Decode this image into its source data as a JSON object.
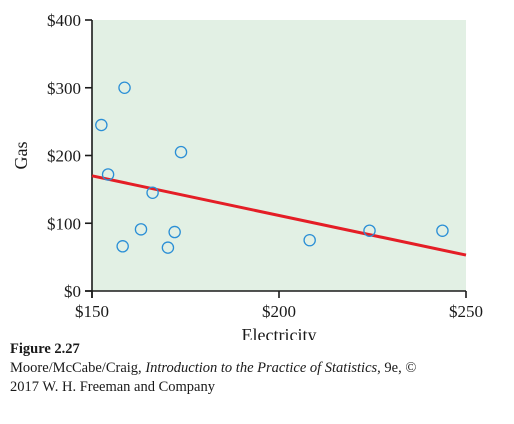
{
  "chart_data": {
    "type": "scatter",
    "xlabel": "Electricity",
    "ylabel": "Gas",
    "xlim": [
      150,
      250
    ],
    "ylim": [
      0,
      400
    ],
    "x_ticks": [
      150,
      200,
      250
    ],
    "y_ticks": [
      0,
      100,
      200,
      300,
      400
    ],
    "x_tick_labels": [
      "$150",
      "$200",
      "$250"
    ],
    "y_tick_labels": [
      "$0",
      "$100",
      "$200",
      "$300",
      "$400"
    ],
    "points": [
      {
        "x": 152.5,
        "y": 245
      },
      {
        "x": 154.3,
        "y": 172
      },
      {
        "x": 158.2,
        "y": 66
      },
      {
        "x": 158.7,
        "y": 300
      },
      {
        "x": 163.1,
        "y": 91
      },
      {
        "x": 166.2,
        "y": 145
      },
      {
        "x": 170.3,
        "y": 64
      },
      {
        "x": 172.1,
        "y": 87
      },
      {
        "x": 173.8,
        "y": 205
      },
      {
        "x": 208.2,
        "y": 75
      },
      {
        "x": 224.2,
        "y": 89
      },
      {
        "x": 243.7,
        "y": 89
      }
    ],
    "fit_line": {
      "x": [
        150,
        250
      ],
      "y": [
        170,
        53
      ]
    },
    "colors": {
      "plot_background": "#e2f0e4",
      "marker": "#2b8fd6",
      "fit_line": "#e41e26",
      "axis": "#1a1a1a"
    },
    "grid": false
  },
  "caption": {
    "figure_label": "Figure 2.27",
    "authors": "Moore/McCabe/Craig, ",
    "book_title": "Introduction to the Practice of Statistics",
    "edition": ", 9e, ©",
    "publisher_line": "2017 W. H. Freeman and Company"
  }
}
